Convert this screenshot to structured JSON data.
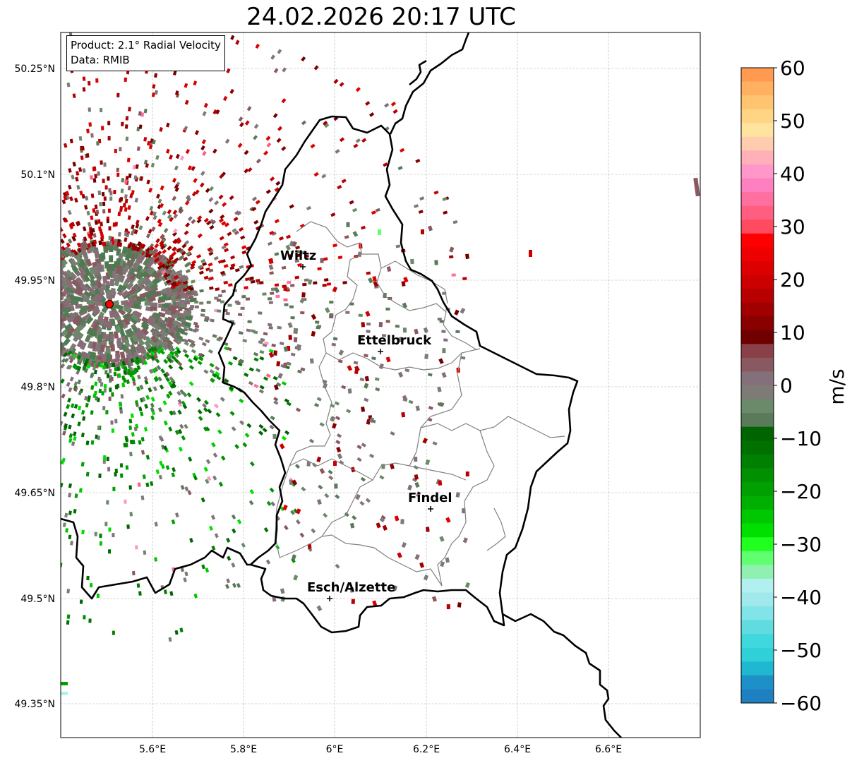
{
  "title": "24.02.2026 20:17 UTC",
  "info": {
    "product": "Product: 2.1° Radial Velocity",
    "data": "Data: RMIB"
  },
  "axes": {
    "lon_ticks": [
      "5.6°E",
      "5.8°E",
      "6°E",
      "6.2°E",
      "6.4°E",
      "6.6°E"
    ],
    "lat_ticks": [
      "50.25°N",
      "50.1°N",
      "49.95°N",
      "49.8°N",
      "49.65°N",
      "49.5°N",
      "49.35°N"
    ]
  },
  "cities": [
    {
      "name": "Wiltz"
    },
    {
      "name": "Ettelbruck"
    },
    {
      "name": "Findel"
    },
    {
      "name": "Esch/Alzette"
    }
  ],
  "radar_marker": {
    "color": "#ff0000"
  },
  "colorbar": {
    "label": "m/s",
    "min": -60,
    "max": 60,
    "ticks": [
      "60",
      "50",
      "40",
      "30",
      "20",
      "10",
      "0",
      "−10",
      "−20",
      "−30",
      "−40",
      "−50",
      "−60"
    ]
  },
  "colors": {
    "border_country": "#000000",
    "border_canton": "#808080",
    "grid": "#b0b0b0"
  }
}
